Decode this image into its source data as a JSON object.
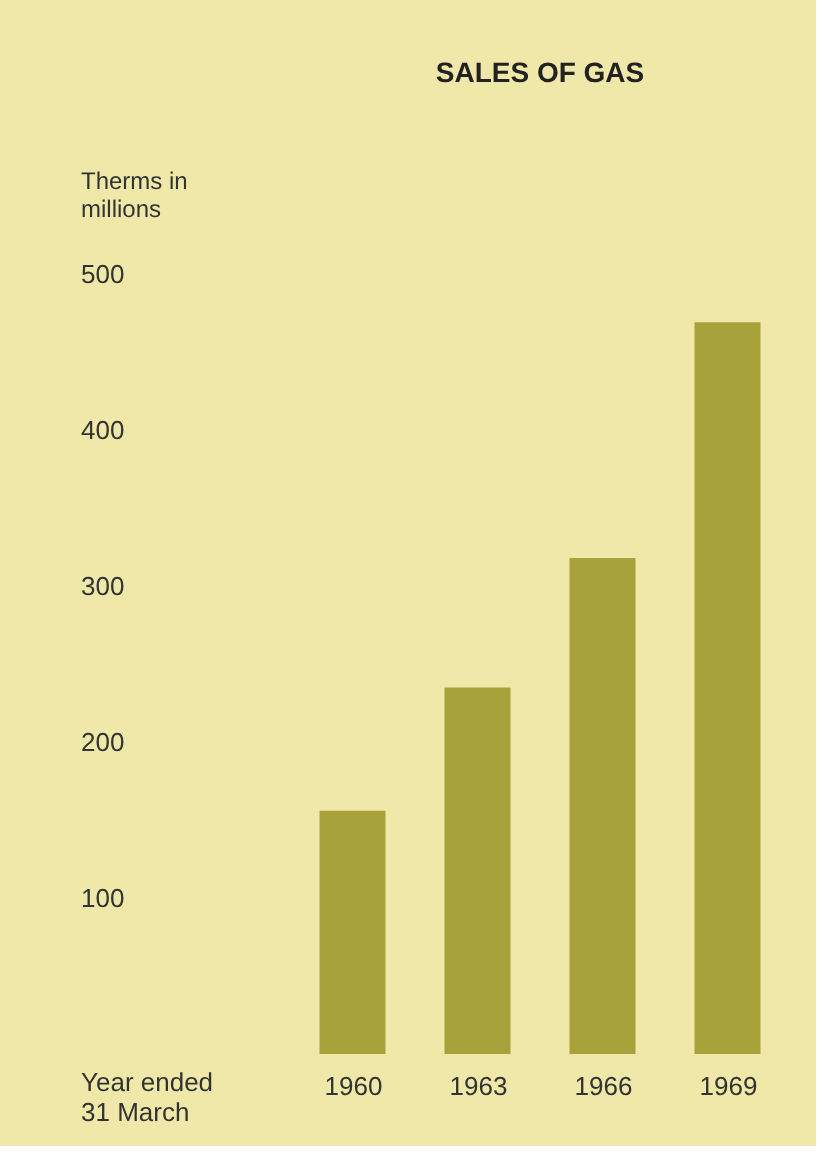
{
  "chart_data": {
    "type": "bar",
    "title": "SALES OF GAS",
    "ylabel": "Therms in millions",
    "xlabel": "Year ended\n31 March",
    "categories": [
      "1960",
      "1963",
      "1966",
      "1969"
    ],
    "values": [
      156,
      235,
      318,
      469
    ],
    "color": "#a7a33a",
    "ylim": [
      0,
      500
    ],
    "yticks": [
      100,
      200,
      300,
      400,
      500
    ],
    "grid": false
  }
}
